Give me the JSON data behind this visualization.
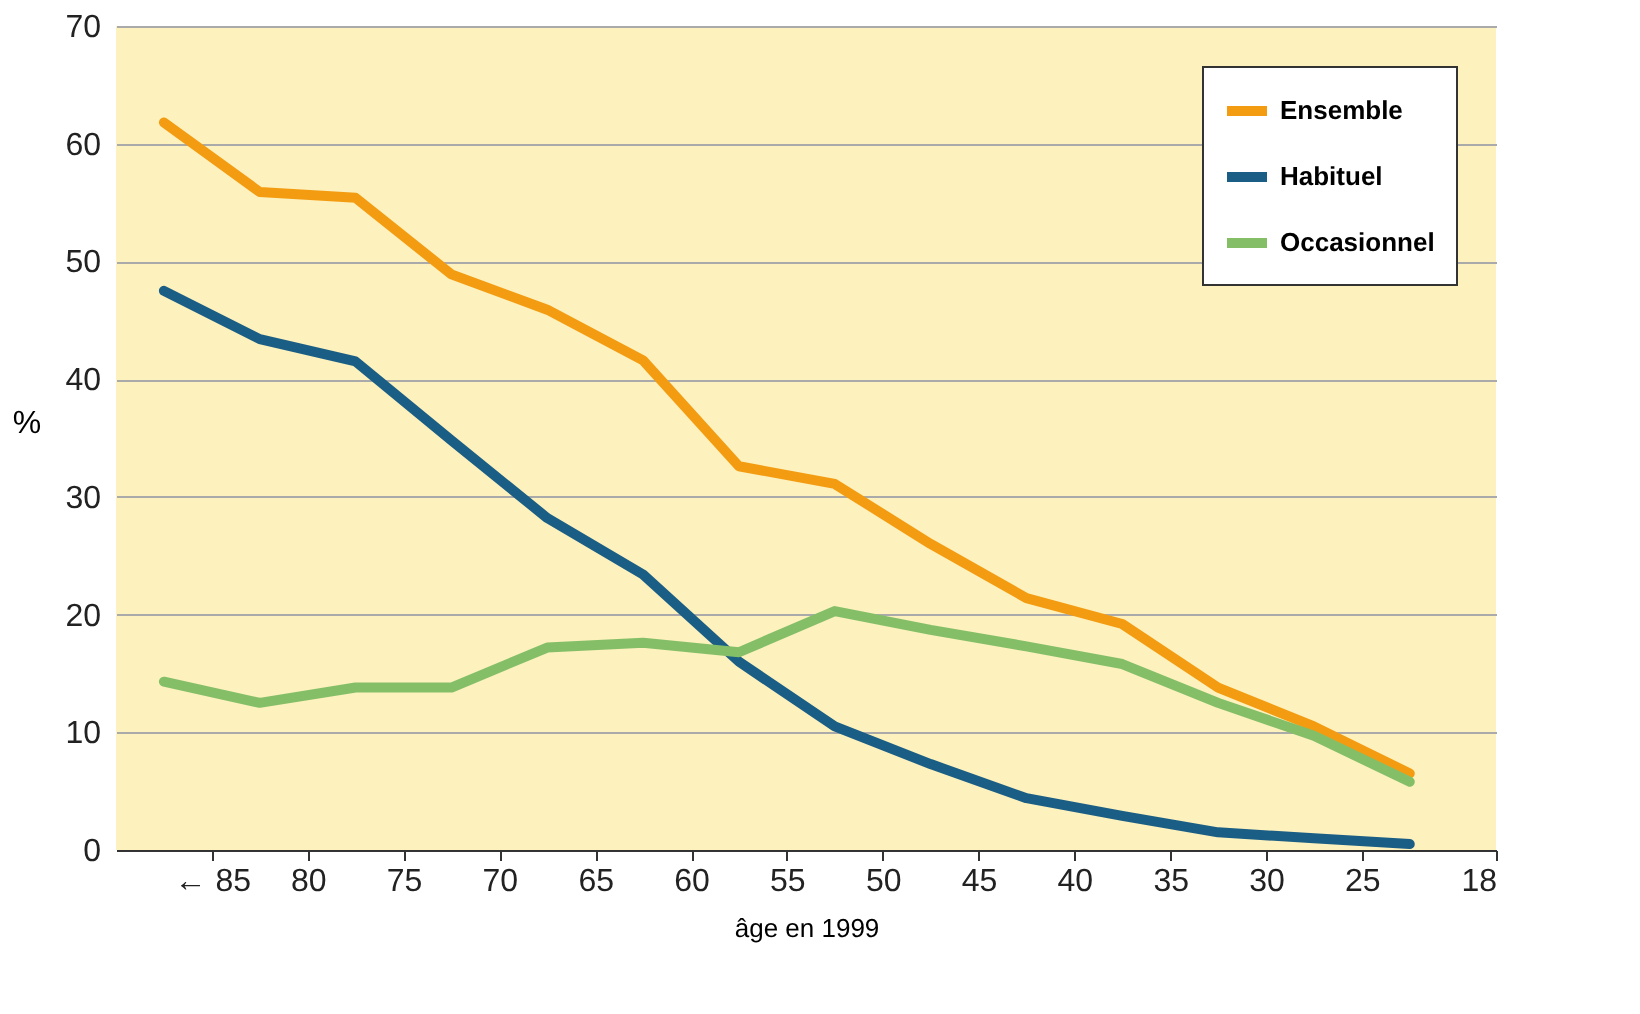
{
  "chart_data": {
    "type": "line",
    "xlabel": "âge en 1999",
    "ylabel": "%",
    "x": [
      87.5,
      82.5,
      77.5,
      72.5,
      67.5,
      62.5,
      57.5,
      52.5,
      47.5,
      42.5,
      37.5,
      32.5,
      27.5,
      22.5
    ],
    "xlim": [
      90,
      18
    ],
    "xticks": [
      {
        "value": 85,
        "label": "← 85"
      },
      80,
      75,
      70,
      65,
      60,
      55,
      50,
      45,
      40,
      35,
      30,
      25,
      18
    ],
    "ylim": [
      0,
      70
    ],
    "yticks": [
      0,
      10,
      20,
      30,
      40,
      50,
      60,
      70
    ],
    "series": [
      {
        "name": "Ensemble",
        "color": "#f39c12",
        "values": [
          61.8,
          55.9,
          55.4,
          48.9,
          45.9,
          41.6,
          32.6,
          31.1,
          26,
          21.4,
          19.2,
          13.8,
          10.5,
          6.5
        ]
      },
      {
        "name": "Habituel",
        "color": "#1b5e85",
        "values": [
          47.5,
          43.4,
          41.5,
          34.8,
          28.2,
          23.4,
          16,
          10.5,
          7.3,
          4.4,
          2.9,
          1.5,
          1,
          0.5
        ]
      },
      {
        "name": "Occasionnel",
        "color": "#84bf68",
        "values": [
          14.3,
          12.5,
          13.8,
          13.8,
          17.2,
          17.6,
          16.8,
          20.3,
          18.7,
          17.3,
          15.8,
          12.5,
          9.7,
          5.8
        ]
      }
    ],
    "grid": "y",
    "legend": "top right",
    "marker": "none",
    "line_style": "solid"
  }
}
